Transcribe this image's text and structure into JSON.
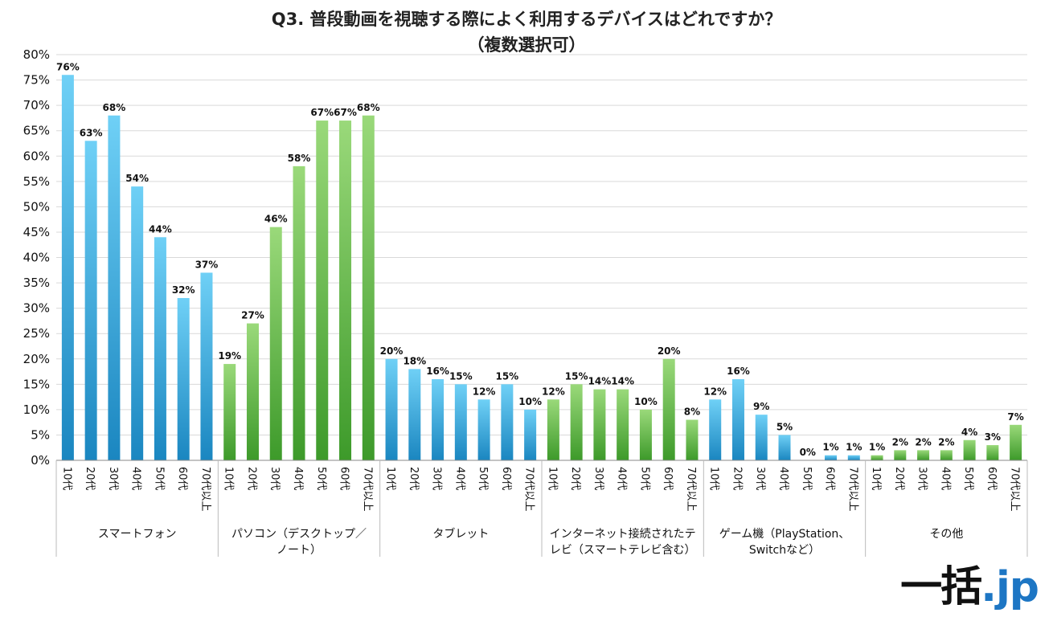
{
  "title_line1": "Q3. 普段動画を視聴する際によく利用するデバイスはどれですか？",
  "title_line2": "（複数選択可）",
  "logo": {
    "main": "一括",
    "suffix": ".jp"
  },
  "colors": {
    "blue_top": "#6fd0f6",
    "blue_bottom": "#1a86c0",
    "green_top": "#9ad97a",
    "green_bottom": "#3d9a2a",
    "grid": "#d9d9d9",
    "axis": "#888888",
    "separator": "#bbbbbb"
  },
  "chart_data": {
    "type": "bar",
    "title": "Q3. 普段動画を視聴する際によく利用するデバイスはどれですか？（複数選択可）",
    "xlabel": "",
    "ylabel": "",
    "ylim": [
      0,
      80
    ],
    "y_ticks": [
      "0%",
      "5%",
      "10%",
      "15%",
      "20%",
      "25%",
      "30%",
      "35%",
      "40%",
      "45%",
      "50%",
      "55%",
      "60%",
      "65%",
      "70%",
      "75%",
      "80%"
    ],
    "grid": true,
    "legend": "none",
    "subcategories": [
      "10代",
      "20代",
      "30代",
      "40代",
      "50代",
      "60代",
      "70代以上"
    ],
    "groups": [
      {
        "name": [
          "スマートフォン"
        ],
        "color": "blue",
        "values": [
          76,
          63,
          68,
          54,
          44,
          32,
          37
        ]
      },
      {
        "name": [
          "パソコン（デスクトップ／",
          "ノート）"
        ],
        "color": "green",
        "values": [
          19,
          27,
          46,
          58,
          67,
          67,
          68
        ]
      },
      {
        "name": [
          "タブレット"
        ],
        "color": "blue",
        "values": [
          20,
          18,
          16,
          15,
          12,
          15,
          10
        ]
      },
      {
        "name": [
          "インターネット接続されたテ",
          "レビ（スマートテレビ含む）"
        ],
        "color": "green",
        "values": [
          12,
          15,
          14,
          14,
          10,
          20,
          8
        ]
      },
      {
        "name": [
          "ゲーム機（PlayStation、",
          "Switchなど）"
        ],
        "color": "blue",
        "values": [
          12,
          16,
          9,
          5,
          0,
          1,
          1
        ]
      },
      {
        "name": [
          "その他"
        ],
        "color": "green",
        "values": [
          1,
          2,
          2,
          2,
          4,
          3,
          7
        ]
      }
    ]
  }
}
